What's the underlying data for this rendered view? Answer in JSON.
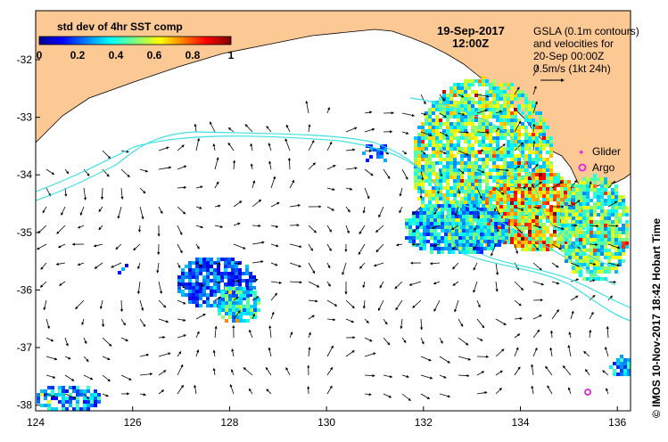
{
  "map": {
    "date": "19-Sep-2017",
    "time": "12:00Z",
    "legend": {
      "title": "std dev of 4hr SST comp",
      "ticks": [
        "0",
        "0.2",
        "0.4",
        "0.6",
        "0.8",
        "1"
      ]
    },
    "gsla_note": [
      "GSLA (0.1m contours)",
      "and velocities for",
      "20-Sep 00:00Z",
      "0.5m/s (1kt 24h)"
    ],
    "markers": [
      {
        "label": "Glider",
        "symbol": "star",
        "color": "#e020e0"
      },
      {
        "label": "Argo",
        "symbol": "circle",
        "color": "#e020e0"
      }
    ],
    "credit": "© IMOS 10-Nov-2017 18:42 Hobart Time",
    "x_ticks": [
      "124",
      "126",
      "128",
      "130",
      "132",
      "134",
      "136"
    ],
    "y_ticks": [
      "-32",
      "-33",
      "-34",
      "-35",
      "-36",
      "-37",
      "-38"
    ],
    "colors": {
      "land": "#fcc995",
      "contour": "#40e0e0",
      "marker": "#e020e0",
      "ocean": "#ffffff"
    }
  }
}
